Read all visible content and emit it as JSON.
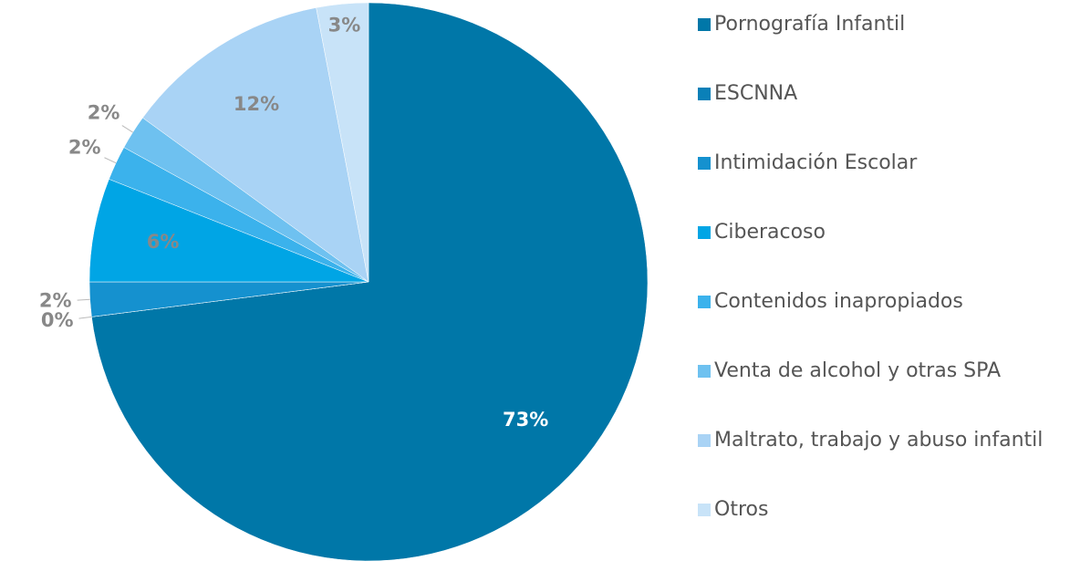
{
  "chart_data": {
    "type": "pie",
    "categories": [
      "Pornografía Infantil",
      "ESCNNA",
      "Intimidación Escolar",
      "Ciberacoso",
      "Contenidos inapropiados",
      "Venta de alcohol y otras SPA",
      "Maltrato, trabajo y abuso infantil",
      "Otros"
    ],
    "values": [
      73,
      0,
      2,
      6,
      2,
      2,
      12,
      3
    ],
    "value_labels": [
      "73%",
      "0%",
      "2%",
      "6%",
      "2%",
      "2%",
      "12%",
      "3%"
    ],
    "colors": [
      "#0077a8",
      "#0a80b8",
      "#1591cf",
      "#00a5e5",
      "#3bb2ec",
      "#6ec1f0",
      "#a9d3f5",
      "#c8e3f8"
    ]
  }
}
